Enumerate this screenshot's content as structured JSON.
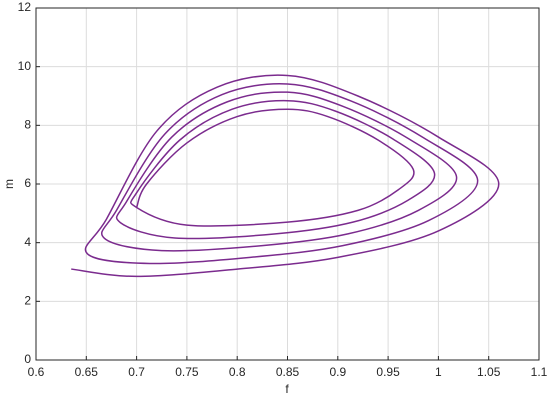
{
  "chart_data": {
    "type": "line",
    "xlabel": "f",
    "ylabel": "m",
    "xlim": [
      0.6,
      1.1
    ],
    "ylim": [
      0,
      12
    ],
    "xticks": [
      0.6,
      0.65,
      0.7,
      0.75,
      0.8,
      0.85,
      0.9,
      0.95,
      1,
      1.05,
      1.1
    ],
    "yticks": [
      0,
      2,
      4,
      6,
      8,
      10,
      12
    ],
    "grid": true,
    "series": [
      {
        "color": "#7b2b8e",
        "x": [
          0.635,
          0.7,
          0.8,
          0.9,
          1.0,
          1.06,
          1.0,
          0.92,
          0.85,
          0.78,
          0.72,
          0.67,
          0.651,
          0.713,
          0.813,
          0.905,
          0.99,
          1.039,
          0.985,
          0.913,
          0.85,
          0.785,
          0.728,
          0.68,
          0.668,
          0.725,
          0.825,
          0.91,
          0.98,
          1.018,
          0.97,
          0.905,
          0.85,
          0.79,
          0.735,
          0.69,
          0.684,
          0.738,
          0.838,
          0.915,
          0.97,
          0.996,
          0.955,
          0.898,
          0.85,
          0.795,
          0.743,
          0.7,
          0.7,
          0.75,
          0.85,
          0.92,
          0.96,
          0.975,
          0.94,
          0.89,
          0.85,
          0.8,
          0.75,
          0.71,
          0.7
        ],
        "values": [
          3.1,
          2.85,
          3.1,
          3.5,
          4.4,
          6.0,
          7.6,
          9.0,
          9.7,
          9.3,
          7.8,
          4.8,
          3.625,
          3.29,
          3.5,
          3.9,
          4.75,
          6.13,
          7.58,
          8.83,
          9.41,
          9.05,
          7.7,
          5.1,
          4.15,
          3.73,
          3.9,
          4.3,
          5.1,
          6.25,
          7.55,
          8.65,
          9.13,
          8.8,
          7.6,
          5.4,
          4.68,
          4.16,
          4.3,
          4.7,
          5.45,
          6.38,
          7.53,
          8.48,
          8.84,
          8.55,
          7.5,
          5.7,
          5.2,
          4.6,
          4.7,
          5.1,
          5.8,
          6.5,
          7.5,
          8.3,
          8.55,
          8.3,
          7.4,
          6.0,
          5.2
        ]
      }
    ]
  }
}
